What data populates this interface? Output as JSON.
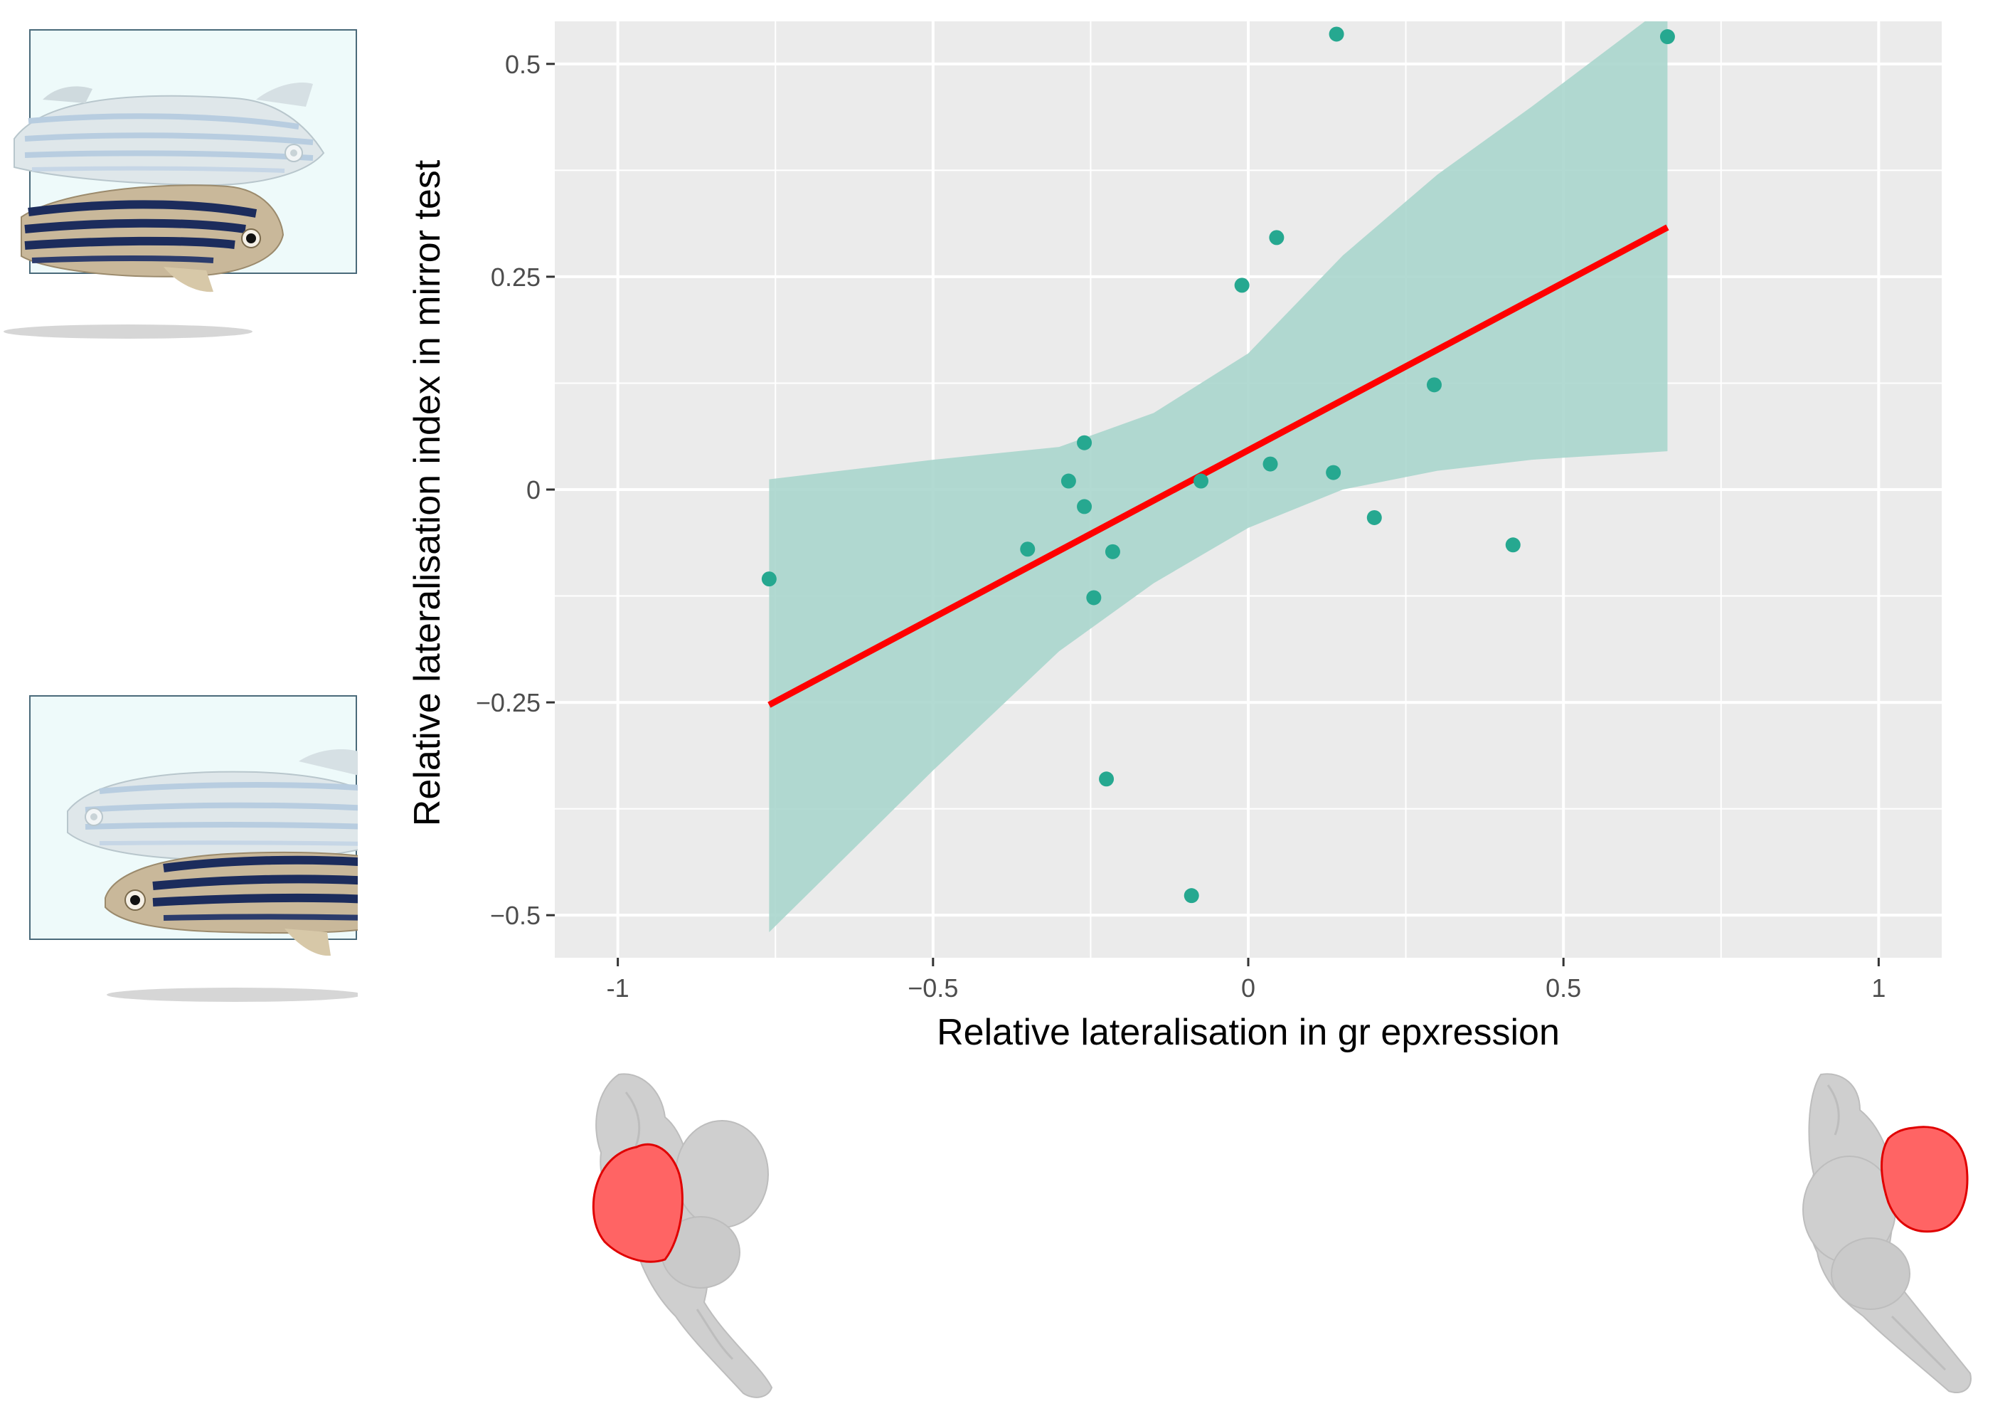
{
  "chart_data": {
    "type": "scatter",
    "title": "",
    "xlabel": "Relative lateralisation in gr epxression",
    "ylabel": "Relative lateralisation index in mirror test",
    "xlim": [
      -1.1,
      1.1
    ],
    "ylim": [
      -0.55,
      0.55
    ],
    "x_ticks": [
      -1,
      -0.5,
      0,
      0.5,
      1
    ],
    "x_tick_labels": [
      "-1",
      "−0.5",
      "0",
      "0.5",
      "1"
    ],
    "y_ticks": [
      -0.5,
      -0.25,
      0,
      0.25,
      0.5
    ],
    "y_tick_labels": [
      "−0.5",
      "−0.25",
      "0",
      "0.25",
      "0.5"
    ],
    "grid": true,
    "points": [
      {
        "x": -0.76,
        "y": -0.105
      },
      {
        "x": -0.35,
        "y": -0.07
      },
      {
        "x": -0.285,
        "y": 0.01
      },
      {
        "x": -0.26,
        "y": 0.055
      },
      {
        "x": -0.26,
        "y": -0.02
      },
      {
        "x": -0.245,
        "y": -0.127
      },
      {
        "x": -0.225,
        "y": -0.34
      },
      {
        "x": -0.215,
        "y": -0.073
      },
      {
        "x": -0.09,
        "y": -0.477
      },
      {
        "x": -0.075,
        "y": 0.01
      },
      {
        "x": -0.01,
        "y": 0.24
      },
      {
        "x": 0.035,
        "y": 0.03
      },
      {
        "x": 0.045,
        "y": 0.296
      },
      {
        "x": 0.135,
        "y": 0.02
      },
      {
        "x": 0.14,
        "y": 0.535
      },
      {
        "x": 0.2,
        "y": -0.033
      },
      {
        "x": 0.295,
        "y": 0.123
      },
      {
        "x": 0.42,
        "y": -0.065
      },
      {
        "x": 0.665,
        "y": 0.532
      }
    ],
    "fit_line": {
      "x": [
        -0.76,
        0.665
      ],
      "y": [
        -0.253,
        0.308
      ]
    },
    "confidence_band": [
      {
        "x": -0.76,
        "lower": -0.52,
        "upper": 0.012
      },
      {
        "x": -0.5,
        "lower": -0.33,
        "upper": 0.035
      },
      {
        "x": -0.3,
        "lower": -0.19,
        "upper": 0.05
      },
      {
        "x": -0.15,
        "lower": -0.11,
        "upper": 0.09
      },
      {
        "x": 0.0,
        "lower": -0.045,
        "upper": 0.16
      },
      {
        "x": 0.15,
        "lower": 0.0,
        "upper": 0.275
      },
      {
        "x": 0.3,
        "lower": 0.022,
        "upper": 0.37
      },
      {
        "x": 0.45,
        "lower": 0.035,
        "upper": 0.45
      },
      {
        "x": 0.665,
        "lower": 0.045,
        "upper": 0.58
      }
    ],
    "colors": {
      "panel_bg": "#ebebeb",
      "grid": "#ffffff",
      "point": "#26a890",
      "band": "#aad6cd",
      "fit_line": "#ff0000"
    }
  },
  "illustrations": {
    "top_left": "fish-mirror-test-icon",
    "bottom_left": "fish-mirror-test-icon",
    "bottom_left_brain": "zebrafish-brain-left-highlight-icon",
    "bottom_right_brain": "zebrafish-brain-right-highlight-icon",
    "highlight_color": "#ff6464",
    "brain_color": "#cfcfcf",
    "tank_color": "#eefafa"
  }
}
